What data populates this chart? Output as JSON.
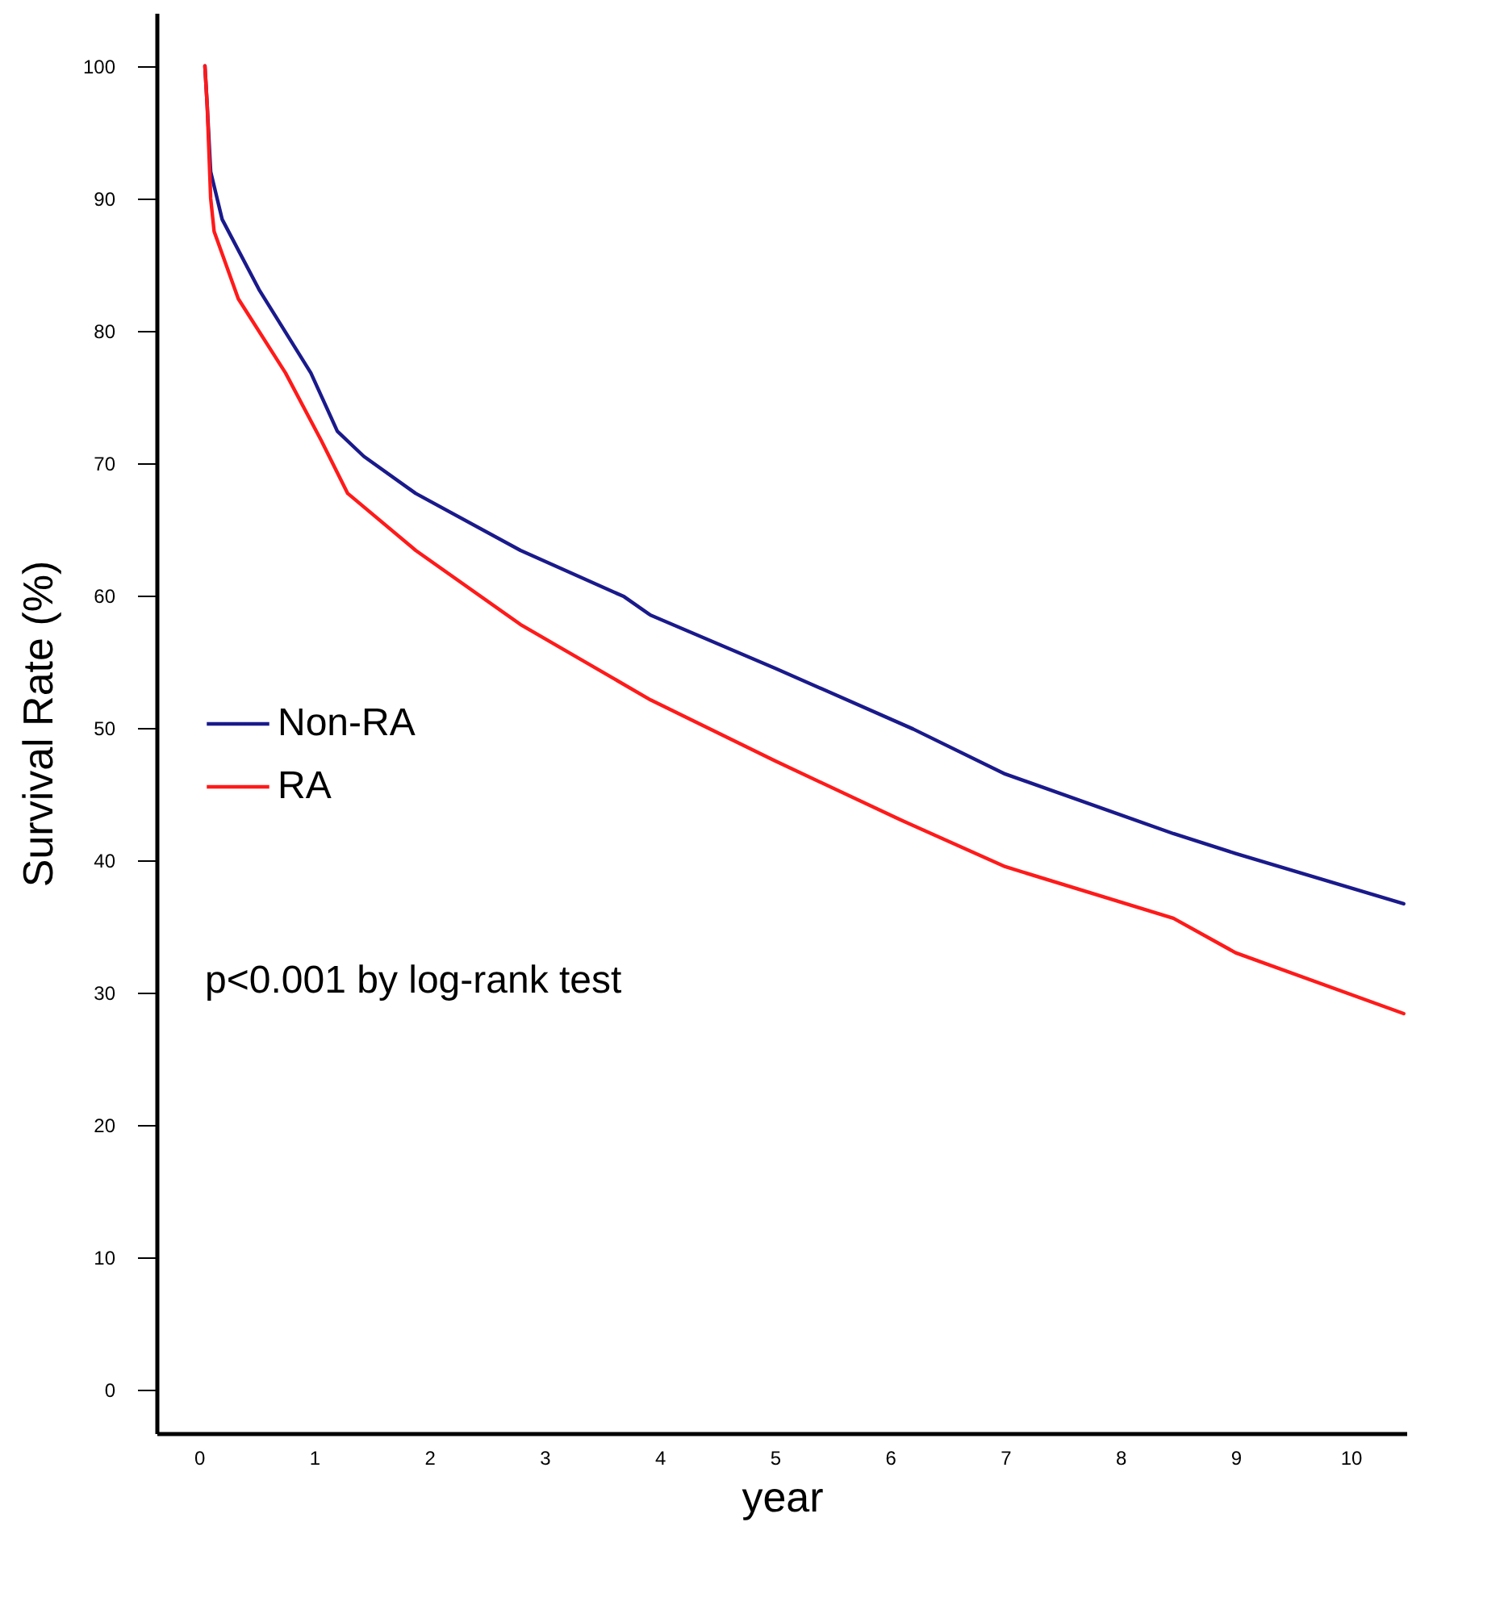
{
  "chart_data": {
    "type": "line",
    "xlabel": "year",
    "ylabel": "Survival Rate (%)",
    "xlim": [
      -0.37,
      10.49
    ],
    "ylim": [
      -3.3,
      104
    ],
    "xticks": [
      0,
      1,
      2,
      3,
      4,
      5,
      6,
      7,
      8,
      9,
      10
    ],
    "yticks": [
      0,
      10,
      20,
      30,
      40,
      50,
      60,
      70,
      80,
      90,
      100
    ],
    "grid": false,
    "legend": "left",
    "line_style": "solid",
    "marker": "none",
    "annotations": [
      "p<0.001 by log-rank test"
    ],
    "series": [
      {
        "name": "Non-RA",
        "color": "#1a1a8c",
        "x": [
          0.05,
          0.07,
          0.1,
          0.2,
          0.52,
          0.97,
          1.2,
          1.43,
          1.88,
          2.79,
          3.69,
          3.92,
          5,
          6.2,
          7,
          8.46,
          9,
          10.46
        ],
        "values": [
          100,
          97,
          92,
          88.4,
          83.1,
          76.8,
          72.4,
          70.5,
          67.7,
          63.4,
          59.9,
          58.5,
          54.5,
          49.9,
          46.5,
          42,
          40.5,
          36.7
        ]
      },
      {
        "name": "RA",
        "color": "#ff1a1a",
        "x": [
          0.05,
          0.07,
          0.1,
          0.13,
          0.34,
          0.75,
          1.06,
          1.29,
          1.88,
          2.79,
          3.92,
          5,
          6.1,
          7,
          8.46,
          9,
          10.46
        ],
        "values": [
          100,
          97,
          90,
          87.5,
          82.4,
          76.8,
          71.7,
          67.7,
          63.4,
          57.8,
          52.1,
          47.5,
          43,
          39.5,
          35.6,
          33,
          28.4
        ]
      }
    ]
  }
}
